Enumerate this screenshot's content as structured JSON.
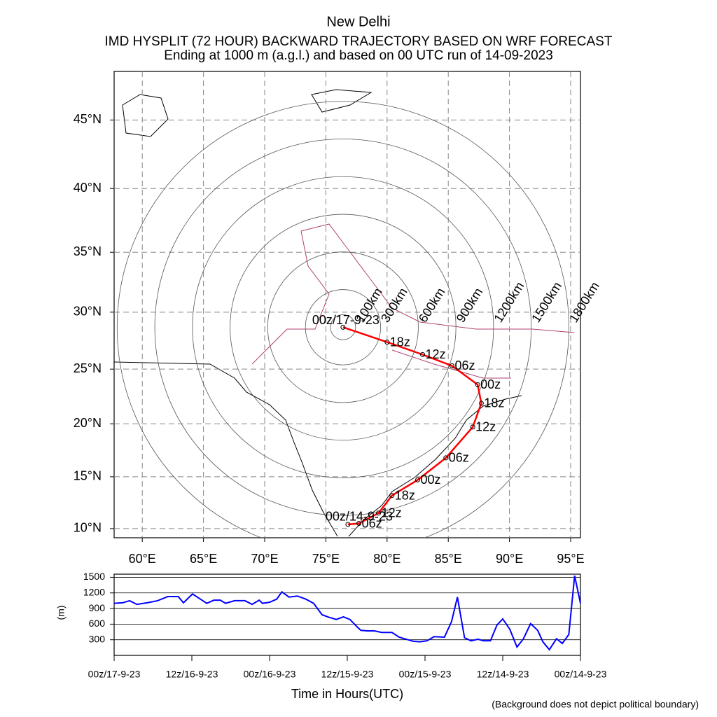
{
  "chart_data": [
    {
      "type": "trajectory",
      "title": "New Delhi",
      "subtitle": [
        "IMD HYSPLIT (72 HOUR) BACKWARD TRAJECTORY BASED ON WRF FORECAST",
        "Ending at 1000 m (a.g.l.) and based on 00 UTC run of 14-09-2023"
      ],
      "projection": "mercator",
      "grid": true,
      "xlim": [
        57.7,
        95.8
      ],
      "ylim": [
        9.1,
        48.3
      ],
      "xticks": [
        {
          "value": 60,
          "label": "60°E"
        },
        {
          "value": 65,
          "label": "65°E"
        },
        {
          "value": 70,
          "label": "70°E"
        },
        {
          "value": 75,
          "label": "75°E"
        },
        {
          "value": 80,
          "label": "80°E"
        },
        {
          "value": 85,
          "label": "85°E"
        },
        {
          "value": 90,
          "label": "90°E"
        },
        {
          "value": 95,
          "label": "95°E"
        }
      ],
      "yticks": [
        {
          "value": 10,
          "label": "10°N"
        },
        {
          "value": 15,
          "label": "15°N"
        },
        {
          "value": 20,
          "label": "20°N"
        },
        {
          "value": 25,
          "label": "25°N"
        },
        {
          "value": 30,
          "label": "30°N"
        },
        {
          "value": 35,
          "label": "35°N"
        },
        {
          "value": 40,
          "label": "40°N"
        },
        {
          "value": 45,
          "label": "45°N"
        }
      ],
      "trajectory": {
        "color": "#ff0000",
        "lon": [
          76.4,
          80.0,
          82.9,
          85.3,
          87.4,
          87.7,
          87.0,
          84.8,
          82.5,
          80.4,
          79.3,
          77.7,
          76.8
        ],
        "lat": [
          28.7,
          27.4,
          26.3,
          25.3,
          23.6,
          21.9,
          19.7,
          16.8,
          14.7,
          13.2,
          11.5,
          10.5,
          10.4
        ],
        "labels": [
          "00z/17-9-23",
          "18z",
          "12z",
          "06z",
          "00z",
          "18z",
          "12z",
          "06z",
          "00z",
          "18z",
          "12z",
          "06z",
          "00z/14-9-23"
        ]
      },
      "range_rings": {
        "color": "#0000ff",
        "values": [
          100,
          300,
          600,
          900,
          1200,
          1500,
          1800
        ],
        "value_labels": [
          "100km",
          "300km",
          "600km",
          "900km",
          "1200km",
          "1500km",
          "1800km"
        ]
      }
    },
    {
      "type": "line",
      "ylabel": "(m)",
      "xlabel": "Time in Hours(UTC)",
      "color": "#0000ff",
      "grid": true,
      "xlim": [
        0,
        72
      ],
      "ylim": [
        0,
        1560
      ],
      "xticks": [
        {
          "value": 0,
          "label": "00z/17-9-23"
        },
        {
          "value": 12,
          "label": "12z/16-9-23"
        },
        {
          "value": 24,
          "label": "00z/16-9-23"
        },
        {
          "value": 36,
          "label": "12z/15-9-23"
        },
        {
          "value": 48,
          "label": "00z/15-9-23"
        },
        {
          "value": 60,
          "label": "12z/14-9-23"
        },
        {
          "value": 72,
          "label": "00z/14-9-23"
        }
      ],
      "yticks": [
        300,
        600,
        900,
        1200,
        1500
      ],
      "x": [
        0,
        1.3,
        2.4,
        3.5,
        5.1,
        6.7,
        8.3,
        9.9,
        10.7,
        12.1,
        13.2,
        14.3,
        15.4,
        16.4,
        17.2,
        18.6,
        20.2,
        21.3,
        22.4,
        22.9,
        24.0,
        25.1,
        25.9,
        27.0,
        28.3,
        29.6,
        30.8,
        32.1,
        33.2,
        34.3,
        35.4,
        36.4,
        37.5,
        38.1,
        39.1,
        40.2,
        41.3,
        42.9,
        44.0,
        45.1,
        46.2,
        47.2,
        48.3,
        49.4,
        51.0,
        52.1,
        53.0,
        54.1,
        55.1,
        56.2,
        57.0,
        58.1,
        59.1,
        60.0,
        61.1,
        62.2,
        63.2,
        64.3,
        65.4,
        66.2,
        67.2,
        68.3,
        69.2,
        70.2,
        71.1,
        72.0
      ],
      "values": [
        1000,
        1010,
        1050,
        980,
        1010,
        1050,
        1130,
        1130,
        1010,
        1180,
        1090,
        1000,
        1060,
        1060,
        1000,
        1050,
        1050,
        980,
        1060,
        1000,
        1020,
        1080,
        1220,
        1120,
        1140,
        1080,
        1000,
        780,
        730,
        690,
        740,
        690,
        550,
        480,
        470,
        470,
        440,
        440,
        350,
        310,
        270,
        260,
        280,
        360,
        350,
        650,
        1120,
        340,
        280,
        310,
        280,
        280,
        580,
        700,
        500,
        160,
        320,
        610,
        480,
        260,
        110,
        320,
        230,
        400,
        1530,
        1000
      ]
    }
  ],
  "footnote": "(Background does not depict political boundary)"
}
